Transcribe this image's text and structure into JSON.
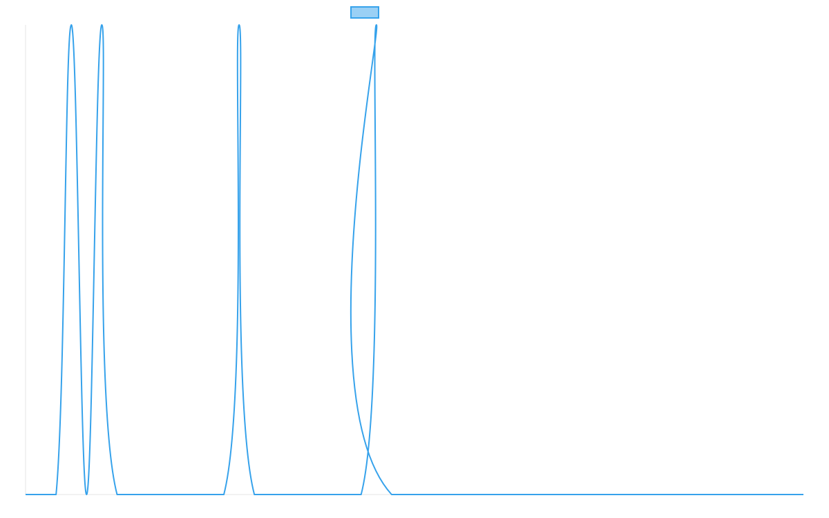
{
  "chart_data": {
    "type": "line",
    "title": "",
    "xlabel": "",
    "ylabel": "",
    "grid": false,
    "legend": {
      "placement": "top-center",
      "entries": [
        {
          "label": "",
          "color": "#36a2eb",
          "fill": "rgba(54,162,235,0.5)"
        }
      ]
    },
    "x_range": [
      0,
      255
    ],
    "y_range": [
      0,
      1
    ],
    "series": [
      {
        "color": "#36a2eb",
        "points": [
          [
            0,
            0
          ],
          [
            10,
            0
          ],
          [
            15,
            1
          ],
          [
            20,
            0
          ],
          [
            25,
            1
          ],
          [
            30,
            0
          ],
          [
            65,
            0
          ],
          [
            70,
            1
          ],
          [
            75,
            0
          ],
          [
            110,
            0
          ],
          [
            115,
            1
          ],
          [
            120,
            0
          ],
          [
            255,
            0
          ]
        ]
      }
    ]
  }
}
